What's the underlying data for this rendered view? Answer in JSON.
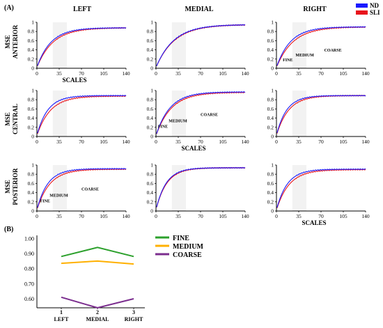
{
  "panel_a_label": "(A)",
  "panel_b_label": "(B)",
  "column_titles": [
    "LEFT",
    "MEDIAL",
    "RIGHT"
  ],
  "row_titles": [
    [
      "MSE",
      "ANTERIOR"
    ],
    [
      "MSE",
      "CENTRAL"
    ],
    [
      "MSE",
      "POSTERIOR"
    ]
  ],
  "scales_label": "SCALES",
  "legend_a": [
    {
      "name": "ND",
      "color": "#1a1aff"
    },
    {
      "name": "SLI",
      "color": "#e8141c"
    }
  ],
  "legend_b": [
    {
      "name": "FINE",
      "color": "#2ca02c"
    },
    {
      "name": "MEDIUM",
      "color": "#ffb000"
    },
    {
      "name": "COARSE",
      "color": "#7b2d8e"
    }
  ],
  "band_labels": [
    "FINE",
    "MEDIUM",
    "COARSE"
  ],
  "chart_data": [
    {
      "type": "line",
      "panel": "A",
      "grid": false,
      "x_ticks": [
        "0",
        "35",
        "70",
        "105",
        "140"
      ],
      "y_ticks": [
        "0",
        "0.2",
        "0.4",
        "0.6",
        "0.8",
        "1"
      ],
      "xlim": [
        0,
        140
      ],
      "ylim": [
        0,
        1
      ],
      "shaded_range": [
        25,
        47
      ],
      "subplots": [
        {
          "row": 0,
          "col": 0,
          "asym": {
            "ND": 0.88,
            "SLI": 0.88
          },
          "k": {
            "ND": 22,
            "SLI": 25
          },
          "bands": false,
          "xlabel": true
        },
        {
          "row": 0,
          "col": 1,
          "asym": {
            "ND": 0.95,
            "SLI": 0.95
          },
          "k": {
            "ND": 28,
            "SLI": 29
          },
          "bands": false,
          "xlabel": false
        },
        {
          "row": 0,
          "col": 2,
          "asym": {
            "ND": 0.9,
            "SLI": 0.9
          },
          "k": {
            "ND": 22,
            "SLI": 26
          },
          "bands": true,
          "xlabel": false
        },
        {
          "row": 1,
          "col": 0,
          "asym": {
            "ND": 0.89,
            "SLI": 0.88
          },
          "k": {
            "ND": 17,
            "SLI": 21
          },
          "bands": false,
          "xlabel": false
        },
        {
          "row": 1,
          "col": 1,
          "asym": {
            "ND": 0.97,
            "SLI": 0.96
          },
          "k": {
            "ND": 22,
            "SLI": 24
          },
          "bands": true,
          "xlabel": true
        },
        {
          "row": 1,
          "col": 2,
          "asym": {
            "ND": 0.89,
            "SLI": 0.89
          },
          "k": {
            "ND": 16,
            "SLI": 19
          },
          "bands": false,
          "xlabel": false
        },
        {
          "row": 2,
          "col": 0,
          "asym": {
            "ND": 0.92,
            "SLI": 0.91
          },
          "k": {
            "ND": 17,
            "SLI": 20
          },
          "bands": true,
          "xlabel": false
        },
        {
          "row": 2,
          "col": 1,
          "asym": {
            "ND": 0.94,
            "SLI": 0.94
          },
          "k": {
            "ND": 16,
            "SLI": 17
          },
          "bands": false,
          "xlabel": false
        },
        {
          "row": 2,
          "col": 2,
          "asym": {
            "ND": 0.91,
            "SLI": 0.9
          },
          "k": {
            "ND": 17,
            "SLI": 20
          },
          "bands": false,
          "xlabel": true
        }
      ]
    },
    {
      "type": "line",
      "panel": "B",
      "categories": [
        "LEFT",
        "MEDIAL",
        "RIGHT"
      ],
      "x_ticks": [
        "1",
        "2",
        "3"
      ],
      "y_ticks": [
        "0.60",
        "0.70",
        "0.80",
        "0.90",
        "1.00"
      ],
      "ylim": [
        0.54,
        1.02
      ],
      "series": [
        {
          "name": "FINE",
          "values": [
            0.88,
            0.94,
            0.88
          ]
        },
        {
          "name": "MEDIUM",
          "values": [
            0.835,
            0.85,
            0.83
          ]
        },
        {
          "name": "COARSE",
          "values": [
            0.61,
            0.54,
            0.6
          ]
        }
      ]
    }
  ]
}
